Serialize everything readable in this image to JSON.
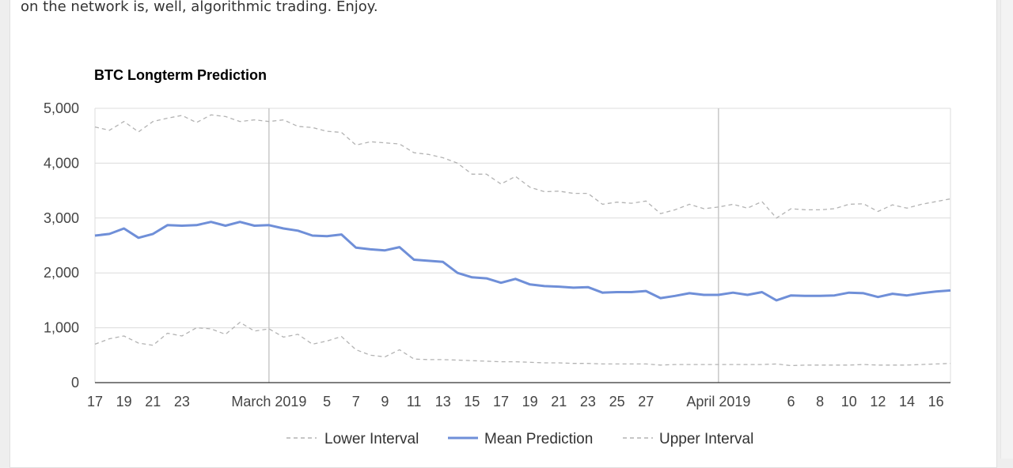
{
  "page": {
    "intro_text": "on the network is, well, algorithmic trading. Enjoy."
  },
  "colors": {
    "mean": "#6f8fd8",
    "interval": "#b3b3b3",
    "grid": "#dcdcdc",
    "major_grid": "#c8c8c8",
    "axis": "#333333"
  },
  "chart_data": {
    "type": "line",
    "title": "BTC Longterm Prediction",
    "xlabel": "",
    "ylabel": "",
    "ylim": [
      0,
      5000
    ],
    "yticks": [
      0,
      1000,
      2000,
      3000,
      4000,
      5000
    ],
    "ytick_labels": [
      "0",
      "1,000",
      "2,000",
      "3,000",
      "4,000",
      "5,000"
    ],
    "xlim": [
      "2019-02-17",
      "2019-04-17"
    ],
    "xticks": [
      {
        "date": "2019-02-17",
        "label": "17"
      },
      {
        "date": "2019-02-19",
        "label": "19"
      },
      {
        "date": "2019-02-21",
        "label": "21"
      },
      {
        "date": "2019-02-23",
        "label": "23"
      },
      {
        "date": "2019-03-01",
        "label": "March 2019"
      },
      {
        "date": "2019-03-05",
        "label": "5"
      },
      {
        "date": "2019-03-07",
        "label": "7"
      },
      {
        "date": "2019-03-09",
        "label": "9"
      },
      {
        "date": "2019-03-11",
        "label": "11"
      },
      {
        "date": "2019-03-13",
        "label": "13"
      },
      {
        "date": "2019-03-15",
        "label": "15"
      },
      {
        "date": "2019-03-17",
        "label": "17"
      },
      {
        "date": "2019-03-19",
        "label": "19"
      },
      {
        "date": "2019-03-21",
        "label": "21"
      },
      {
        "date": "2019-03-23",
        "label": "23"
      },
      {
        "date": "2019-03-25",
        "label": "25"
      },
      {
        "date": "2019-03-27",
        "label": "27"
      },
      {
        "date": "2019-04-01",
        "label": "April 2019"
      },
      {
        "date": "2019-04-06",
        "label": "6"
      },
      {
        "date": "2019-04-08",
        "label": "8"
      },
      {
        "date": "2019-04-10",
        "label": "10"
      },
      {
        "date": "2019-04-12",
        "label": "12"
      },
      {
        "date": "2019-04-14",
        "label": "14"
      },
      {
        "date": "2019-04-16",
        "label": "16"
      }
    ],
    "major_gridlines": [
      "2019-03-01",
      "2019-04-01"
    ],
    "grid": true,
    "legend_position": "bottom",
    "x": [
      "2019-02-17",
      "2019-02-18",
      "2019-02-19",
      "2019-02-20",
      "2019-02-21",
      "2019-02-22",
      "2019-02-23",
      "2019-02-24",
      "2019-02-25",
      "2019-02-26",
      "2019-02-27",
      "2019-02-28",
      "2019-03-01",
      "2019-03-02",
      "2019-03-03",
      "2019-03-04",
      "2019-03-05",
      "2019-03-06",
      "2019-03-07",
      "2019-03-08",
      "2019-03-09",
      "2019-03-10",
      "2019-03-11",
      "2019-03-12",
      "2019-03-13",
      "2019-03-14",
      "2019-03-15",
      "2019-03-16",
      "2019-03-17",
      "2019-03-18",
      "2019-03-19",
      "2019-03-20",
      "2019-03-21",
      "2019-03-22",
      "2019-03-23",
      "2019-03-24",
      "2019-03-25",
      "2019-03-26",
      "2019-03-27",
      "2019-03-28",
      "2019-03-29",
      "2019-03-30",
      "2019-03-31",
      "2019-04-01",
      "2019-04-02",
      "2019-04-03",
      "2019-04-04",
      "2019-04-05",
      "2019-04-06",
      "2019-04-07",
      "2019-04-08",
      "2019-04-09",
      "2019-04-10",
      "2019-04-11",
      "2019-04-12",
      "2019-04-13",
      "2019-04-14",
      "2019-04-15",
      "2019-04-16",
      "2019-04-17"
    ],
    "series": [
      {
        "name": "Lower Interval",
        "style": "dashed",
        "values": [
          700,
          800,
          850,
          720,
          680,
          900,
          850,
          1000,
          980,
          880,
          1100,
          940,
          980,
          830,
          880,
          700,
          760,
          840,
          600,
          500,
          470,
          600,
          430,
          420,
          420,
          410,
          400,
          390,
          380,
          380,
          370,
          360,
          360,
          350,
          350,
          340,
          340,
          340,
          340,
          320,
          330,
          330,
          330,
          330,
          330,
          330,
          330,
          340,
          310,
          320,
          320,
          320,
          320,
          330,
          320,
          320,
          320,
          330,
          340,
          350
        ]
      },
      {
        "name": "Mean Prediction",
        "style": "solid",
        "values": [
          2680,
          2710,
          2810,
          2640,
          2710,
          2870,
          2860,
          2870,
          2930,
          2860,
          2930,
          2860,
          2870,
          2810,
          2770,
          2680,
          2670,
          2700,
          2460,
          2430,
          2410,
          2470,
          2240,
          2220,
          2200,
          2000,
          1920,
          1900,
          1820,
          1890,
          1790,
          1760,
          1750,
          1730,
          1740,
          1640,
          1650,
          1650,
          1670,
          1540,
          1580,
          1630,
          1600,
          1600,
          1640,
          1600,
          1650,
          1500,
          1590,
          1580,
          1580,
          1590,
          1640,
          1630,
          1560,
          1620,
          1590,
          1630,
          1660,
          1680
        ]
      },
      {
        "name": "Upper Interval",
        "style": "dashed",
        "values": [
          4660,
          4600,
          4760,
          4570,
          4760,
          4820,
          4870,
          4740,
          4880,
          4850,
          4760,
          4790,
          4760,
          4790,
          4670,
          4650,
          4580,
          4560,
          4330,
          4390,
          4370,
          4350,
          4190,
          4160,
          4100,
          4000,
          3800,
          3800,
          3620,
          3760,
          3560,
          3480,
          3490,
          3450,
          3450,
          3250,
          3290,
          3270,
          3310,
          3080,
          3150,
          3250,
          3170,
          3200,
          3250,
          3180,
          3300,
          3000,
          3170,
          3150,
          3150,
          3170,
          3250,
          3260,
          3120,
          3240,
          3180,
          3250,
          3300,
          3350
        ]
      }
    ]
  }
}
